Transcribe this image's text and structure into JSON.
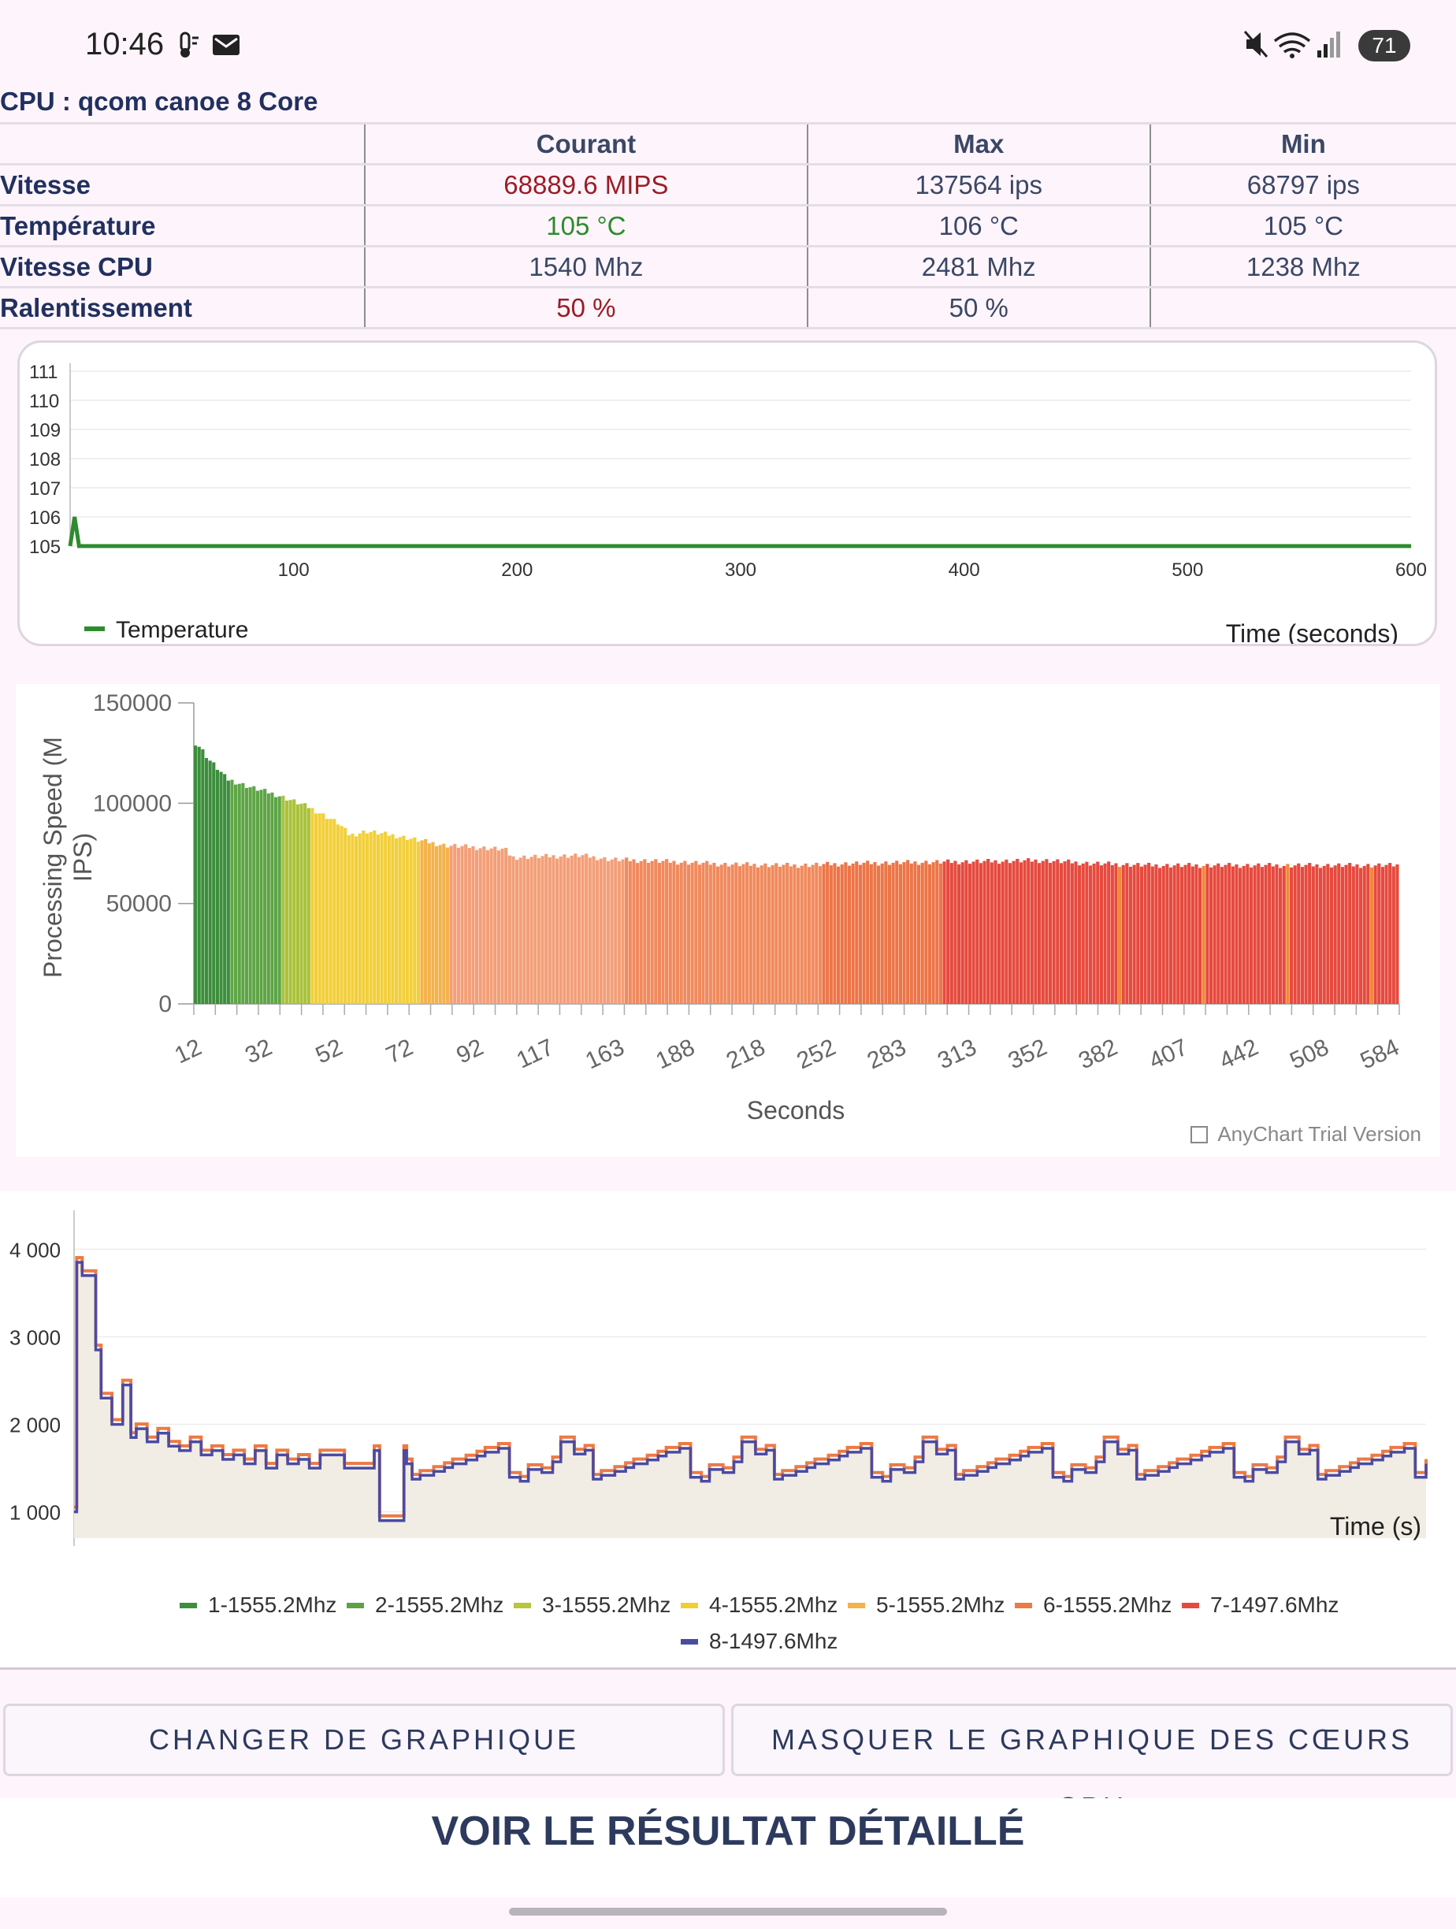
{
  "status_bar": {
    "time": "10:46",
    "battery": "71"
  },
  "cpu_title": "CPU : qcom canoe 8 Core",
  "table": {
    "headers": [
      "",
      "Courant",
      "Max",
      "Min"
    ],
    "rows": [
      {
        "label": "Vitesse",
        "current": "68889.6 MIPS",
        "max": "137564 ips",
        "min": "68797 ips"
      },
      {
        "label": "Température",
        "current": "105 °C",
        "max": "106 °C",
        "min": "105 °C"
      },
      {
        "label": "Vitesse CPU",
        "current": "1540 Mhz",
        "max": "2481 Mhz",
        "min": "1238 Mhz"
      },
      {
        "label": "Ralentissement",
        "current": "50 %",
        "max": "50 %",
        "min": ""
      }
    ]
  },
  "chart_data": [
    {
      "type": "line",
      "series": [
        {
          "name": "Temperature",
          "x": [
            0,
            2,
            4,
            600
          ],
          "values": [
            105,
            106,
            105,
            105
          ]
        }
      ],
      "yticks": [
        "105",
        "106",
        "107",
        "108",
        "109",
        "110",
        "111"
      ],
      "xticks": [
        "100",
        "200",
        "300",
        "400",
        "500",
        "600"
      ],
      "xlabel": "Time (seconds)",
      "ylim": [
        105,
        111
      ],
      "xlim": [
        0,
        600
      ],
      "color": "#2e8b2e"
    },
    {
      "type": "bar",
      "ylabel": "Processing Speed (MIPS)",
      "xlabel": "Seconds",
      "yticks": [
        "0",
        "50000",
        "100000",
        "150000"
      ],
      "ylim": [
        0,
        150000
      ],
      "xticks": [
        "12",
        "32",
        "52",
        "72",
        "92",
        "117",
        "163",
        "188",
        "218",
        "252",
        "283",
        "313",
        "352",
        "382",
        "407",
        "442",
        "508",
        "584"
      ],
      "profile_seconds": [
        12,
        14,
        18,
        24,
        32,
        42,
        52,
        56,
        62,
        72,
        92,
        117,
        120,
        150,
        163,
        188,
        218,
        252,
        283,
        313,
        352,
        382,
        407,
        442,
        508,
        584
      ],
      "profile_values": [
        130000,
        122000,
        112000,
        108000,
        104000,
        98000,
        90000,
        84000,
        86000,
        84000,
        79000,
        77000,
        73000,
        74000,
        72000,
        71000,
        69500,
        69000,
        70000,
        70500,
        71000,
        71500,
        70000,
        69000,
        69000,
        69000
      ],
      "watermark": "AnyChart Trial Version"
    },
    {
      "type": "line",
      "yticks": [
        "1 000",
        "2 000",
        "3 000",
        "4 000"
      ],
      "ylim": [
        700,
        4300
      ],
      "xlabel": "Time (s)",
      "legend": [
        {
          "name": "1-1555.2Mhz",
          "color": "#3d8f3d"
        },
        {
          "name": "2-1555.2Mhz",
          "color": "#5da145"
        },
        {
          "name": "3-1555.2Mhz",
          "color": "#b9c53b"
        },
        {
          "name": "4-1555.2Mhz",
          "color": "#f0cf32"
        },
        {
          "name": "5-1555.2Mhz",
          "color": "#f3b24a"
        },
        {
          "name": "6-1555.2Mhz",
          "color": "#ec7a45"
        },
        {
          "name": "7-1497.6Mhz",
          "color": "#e64a3e"
        },
        {
          "name": "8-1497.6Mhz",
          "color": "#4a4ba3"
        }
      ],
      "line_color_orange": "#ec7a45",
      "line_color_blue": "#4a4ba3",
      "fill_color": "#f1ede4"
    }
  ],
  "buttons": {
    "change_chart": "CHANGER DE GRAPHIQUE",
    "hide_cores": "MASQUER LE GRAPHIQUE DES CŒURS CPU",
    "detailed_result": "VOIR LE RÉSULTAT DÉTAILLÉ"
  }
}
